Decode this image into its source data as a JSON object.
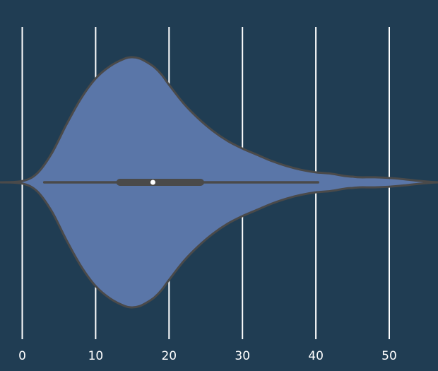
{
  "chart_data": {
    "type": "violin",
    "orientation": "horizontal",
    "title": "",
    "xlabel": "",
    "ylabel": "",
    "xlim": [
      -3,
      57
    ],
    "x_ticks": [
      0,
      10,
      20,
      30,
      40,
      50
    ],
    "x_tick_labels": [
      "0",
      "10",
      "20",
      "30",
      "40",
      "50"
    ],
    "grid": "vertical",
    "colors": {
      "background": "#203d53",
      "violin_fill": "#5a76a8",
      "outline": "#4a4a4a",
      "box": "#4a4a4a",
      "median": "#ffffff",
      "grid": "#ffffff",
      "tick_text": "#ffffff"
    },
    "series": [
      {
        "summary": {
          "whisker_low": 3,
          "q1": 13.3,
          "median": 17.8,
          "q3": 24.3,
          "whisker_high": 40.3
        },
        "density_profile": {
          "x": [
            -3,
            0,
            2,
            4,
            6,
            8,
            10,
            12,
            14,
            15,
            16,
            17,
            18,
            19,
            20,
            22,
            24,
            26,
            28,
            30,
            32,
            34,
            36,
            38,
            40,
            42,
            44,
            45,
            46,
            48,
            50,
            52,
            54,
            56,
            57
          ],
          "density": [
            0.0,
            0.01,
            0.07,
            0.23,
            0.46,
            0.67,
            0.83,
            0.93,
            0.99,
            1.0,
            0.99,
            0.96,
            0.92,
            0.86,
            0.78,
            0.63,
            0.51,
            0.41,
            0.33,
            0.27,
            0.22,
            0.17,
            0.13,
            0.1,
            0.08,
            0.07,
            0.05,
            0.045,
            0.04,
            0.04,
            0.035,
            0.025,
            0.012,
            0.002,
            0.0
          ]
        }
      }
    ]
  }
}
